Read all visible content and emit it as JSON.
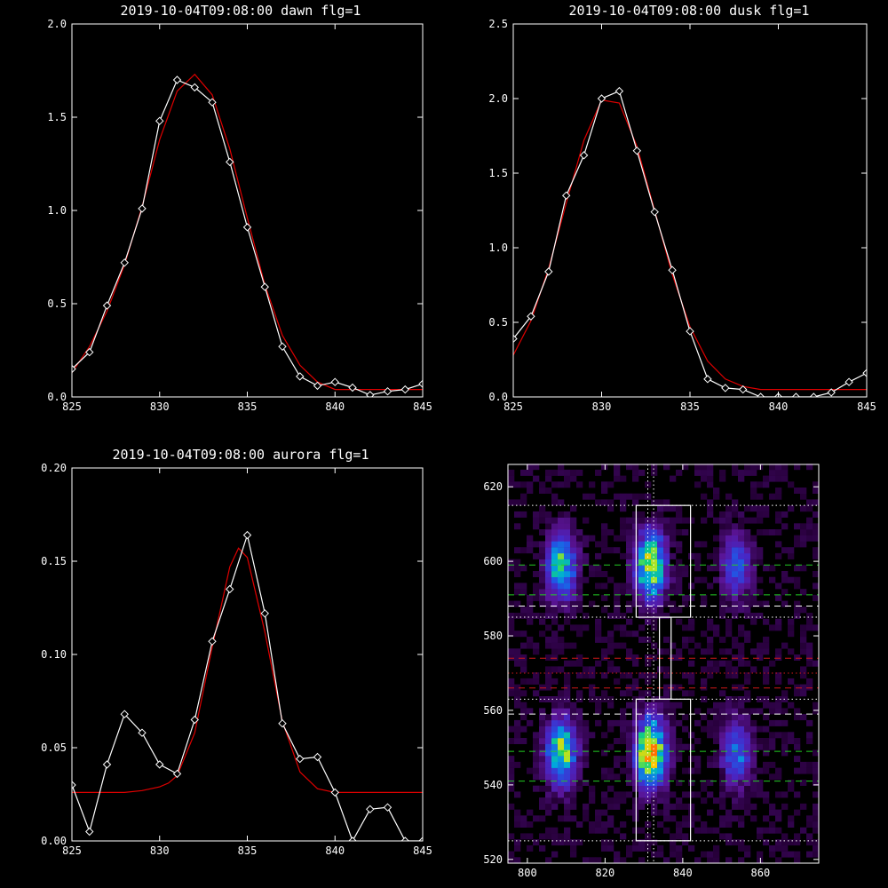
{
  "chart_data": [
    {
      "type": "line",
      "title": "2019-10-04T09:08:00 dawn flg=1",
      "xlim": [
        825,
        845
      ],
      "ylim": [
        0,
        2.0
      ],
      "xticks": [
        "825",
        "830",
        "835",
        "840",
        "845"
      ],
      "yticks": [
        "0.0",
        "0.5",
        "1.0",
        "1.5",
        "2.0"
      ],
      "series": [
        {
          "color": "#ffffff",
          "markers": true,
          "x": [
            825,
            826,
            827,
            828,
            829,
            830,
            831,
            832,
            833,
            834,
            835,
            836,
            837,
            838,
            839,
            840,
            841,
            842,
            843,
            844,
            845
          ],
          "y": [
            0.15,
            0.24,
            0.49,
            0.72,
            1.01,
            1.48,
            1.7,
            1.66,
            1.58,
            1.26,
            0.91,
            0.59,
            0.27,
            0.11,
            0.06,
            0.08,
            0.05,
            0.01,
            0.03,
            0.04,
            0.07
          ]
        },
        {
          "color": "#e00000",
          "markers": false,
          "x": [
            825,
            826,
            827,
            828,
            829,
            830,
            831,
            832,
            833,
            834,
            835,
            836,
            837,
            838,
            839,
            840,
            841,
            842,
            843,
            844,
            845
          ],
          "y": [
            0.13,
            0.27,
            0.46,
            0.71,
            1.02,
            1.38,
            1.64,
            1.73,
            1.62,
            1.33,
            0.96,
            0.6,
            0.33,
            0.17,
            0.08,
            0.04,
            0.04,
            0.04,
            0.04,
            0.04,
            0.04
          ]
        }
      ]
    },
    {
      "type": "line",
      "title": "2019-10-04T09:08:00 dusk flg=1",
      "xlim": [
        825,
        845
      ],
      "ylim": [
        0,
        2.5
      ],
      "xticks": [
        "825",
        "830",
        "835",
        "840",
        "845"
      ],
      "yticks": [
        "0.0",
        "0.5",
        "1.0",
        "1.5",
        "2.0",
        "2.5"
      ],
      "series": [
        {
          "color": "#ffffff",
          "markers": true,
          "x": [
            825,
            826,
            827,
            828,
            829,
            830,
            831,
            832,
            833,
            834,
            835,
            836,
            837,
            838,
            839,
            840,
            841,
            842,
            843,
            844,
            845
          ],
          "y": [
            0.39,
            0.54,
            0.84,
            1.35,
            1.62,
            2.0,
            2.05,
            1.65,
            1.24,
            0.85,
            0.44,
            0.12,
            0.06,
            0.05,
            0.0,
            0.0,
            0.0,
            0.0,
            0.03,
            0.1,
            0.16
          ]
        },
        {
          "color": "#e00000",
          "markers": false,
          "x": [
            825,
            826,
            827,
            828,
            829,
            830,
            831,
            832,
            833,
            834,
            835,
            836,
            837,
            838,
            839,
            840,
            841,
            842,
            843,
            844,
            845
          ],
          "y": [
            0.28,
            0.51,
            0.86,
            1.3,
            1.72,
            1.99,
            1.97,
            1.68,
            1.25,
            0.82,
            0.47,
            0.24,
            0.12,
            0.07,
            0.05,
            0.05,
            0.05,
            0.05,
            0.05,
            0.05,
            0.05
          ]
        }
      ]
    },
    {
      "type": "line",
      "title": "2019-10-04T09:08:00 aurora flg=1",
      "xlim": [
        825,
        845
      ],
      "ylim": [
        0,
        0.2
      ],
      "xticks": [
        "825",
        "830",
        "835",
        "840",
        "845"
      ],
      "yticks": [
        "0.00",
        "0.05",
        "0.10",
        "0.15",
        "0.20"
      ],
      "series": [
        {
          "color": "#ffffff",
          "markers": true,
          "x": [
            825,
            826,
            827,
            828,
            829,
            830,
            831,
            832,
            833,
            834,
            835,
            836,
            837,
            838,
            839,
            840,
            841,
            842,
            843,
            844,
            845
          ],
          "y": [
            0.03,
            0.005,
            0.041,
            0.068,
            0.058,
            0.041,
            0.036,
            0.065,
            0.107,
            0.135,
            0.164,
            0.122,
            0.063,
            0.044,
            0.045,
            0.026,
            0.0,
            0.017,
            0.018,
            0.0,
            0.0
          ]
        },
        {
          "color": "#e00000",
          "markers": false,
          "x": [
            825,
            826,
            827,
            828,
            829,
            830,
            830.5,
            831,
            832,
            833,
            834,
            834.5,
            835,
            836,
            837,
            838,
            839,
            840,
            841,
            842,
            843,
            844,
            845
          ],
          "y": [
            0.026,
            0.026,
            0.026,
            0.026,
            0.027,
            0.029,
            0.031,
            0.035,
            0.058,
            0.104,
            0.147,
            0.157,
            0.152,
            0.112,
            0.064,
            0.037,
            0.028,
            0.026,
            0.026,
            0.026,
            0.026,
            0.026,
            0.026
          ]
        }
      ]
    },
    {
      "type": "heatmap",
      "title": "",
      "xlim": [
        795,
        875
      ],
      "ylim": [
        519,
        626
      ],
      "xticks": [
        "800",
        "820",
        "840",
        "860"
      ],
      "yticks": [
        "520",
        "540",
        "560",
        "580",
        "600",
        "620"
      ],
      "blobs": [
        {
          "x": 808,
          "y": 598,
          "intensity": 0.55
        },
        {
          "x": 831,
          "y": 598,
          "intensity": 0.7
        },
        {
          "x": 853,
          "y": 598,
          "intensity": 0.3
        },
        {
          "x": 808,
          "y": 548,
          "intensity": 0.6
        },
        {
          "x": 831,
          "y": 548,
          "intensity": 0.85
        },
        {
          "x": 853,
          "y": 548,
          "intensity": 0.35
        }
      ],
      "boxes": [
        {
          "x": [
            828,
            842
          ],
          "y": [
            585,
            615
          ]
        },
        {
          "x": [
            828,
            842
          ],
          "y": [
            525,
            563
          ]
        },
        {
          "x": [
            834,
            837
          ],
          "y": [
            563,
            585
          ]
        }
      ],
      "hlines": [
        {
          "y": 615,
          "color": "#ffffff",
          "style": "dotted"
        },
        {
          "y": 599,
          "color": "#22cc22",
          "style": "dashed"
        },
        {
          "y": 591,
          "color": "#22cc22",
          "style": "dashed"
        },
        {
          "y": 588,
          "color": "#ffffff",
          "style": "dashed"
        },
        {
          "y": 585,
          "color": "#ffffff",
          "style": "dotted"
        },
        {
          "y": 574,
          "color": "#d01818",
          "style": "dashed"
        },
        {
          "y": 570,
          "color": "#d01818",
          "style": "dotted"
        },
        {
          "y": 566,
          "color": "#d01818",
          "style": "dashed"
        },
        {
          "y": 563,
          "color": "#ffffff",
          "style": "dotted"
        },
        {
          "y": 559,
          "color": "#ffffff",
          "style": "dashed"
        },
        {
          "y": 549,
          "color": "#22cc22",
          "style": "dashed"
        },
        {
          "y": 541,
          "color": "#22cc22",
          "style": "dashed"
        },
        {
          "y": 525,
          "color": "#ffffff",
          "style": "dotted"
        }
      ],
      "vlines": [
        {
          "x": 831,
          "color": "#ffffff",
          "style": "dotted"
        },
        {
          "x": 832.5,
          "color": "#ffffff",
          "style": "dotted"
        }
      ]
    }
  ]
}
